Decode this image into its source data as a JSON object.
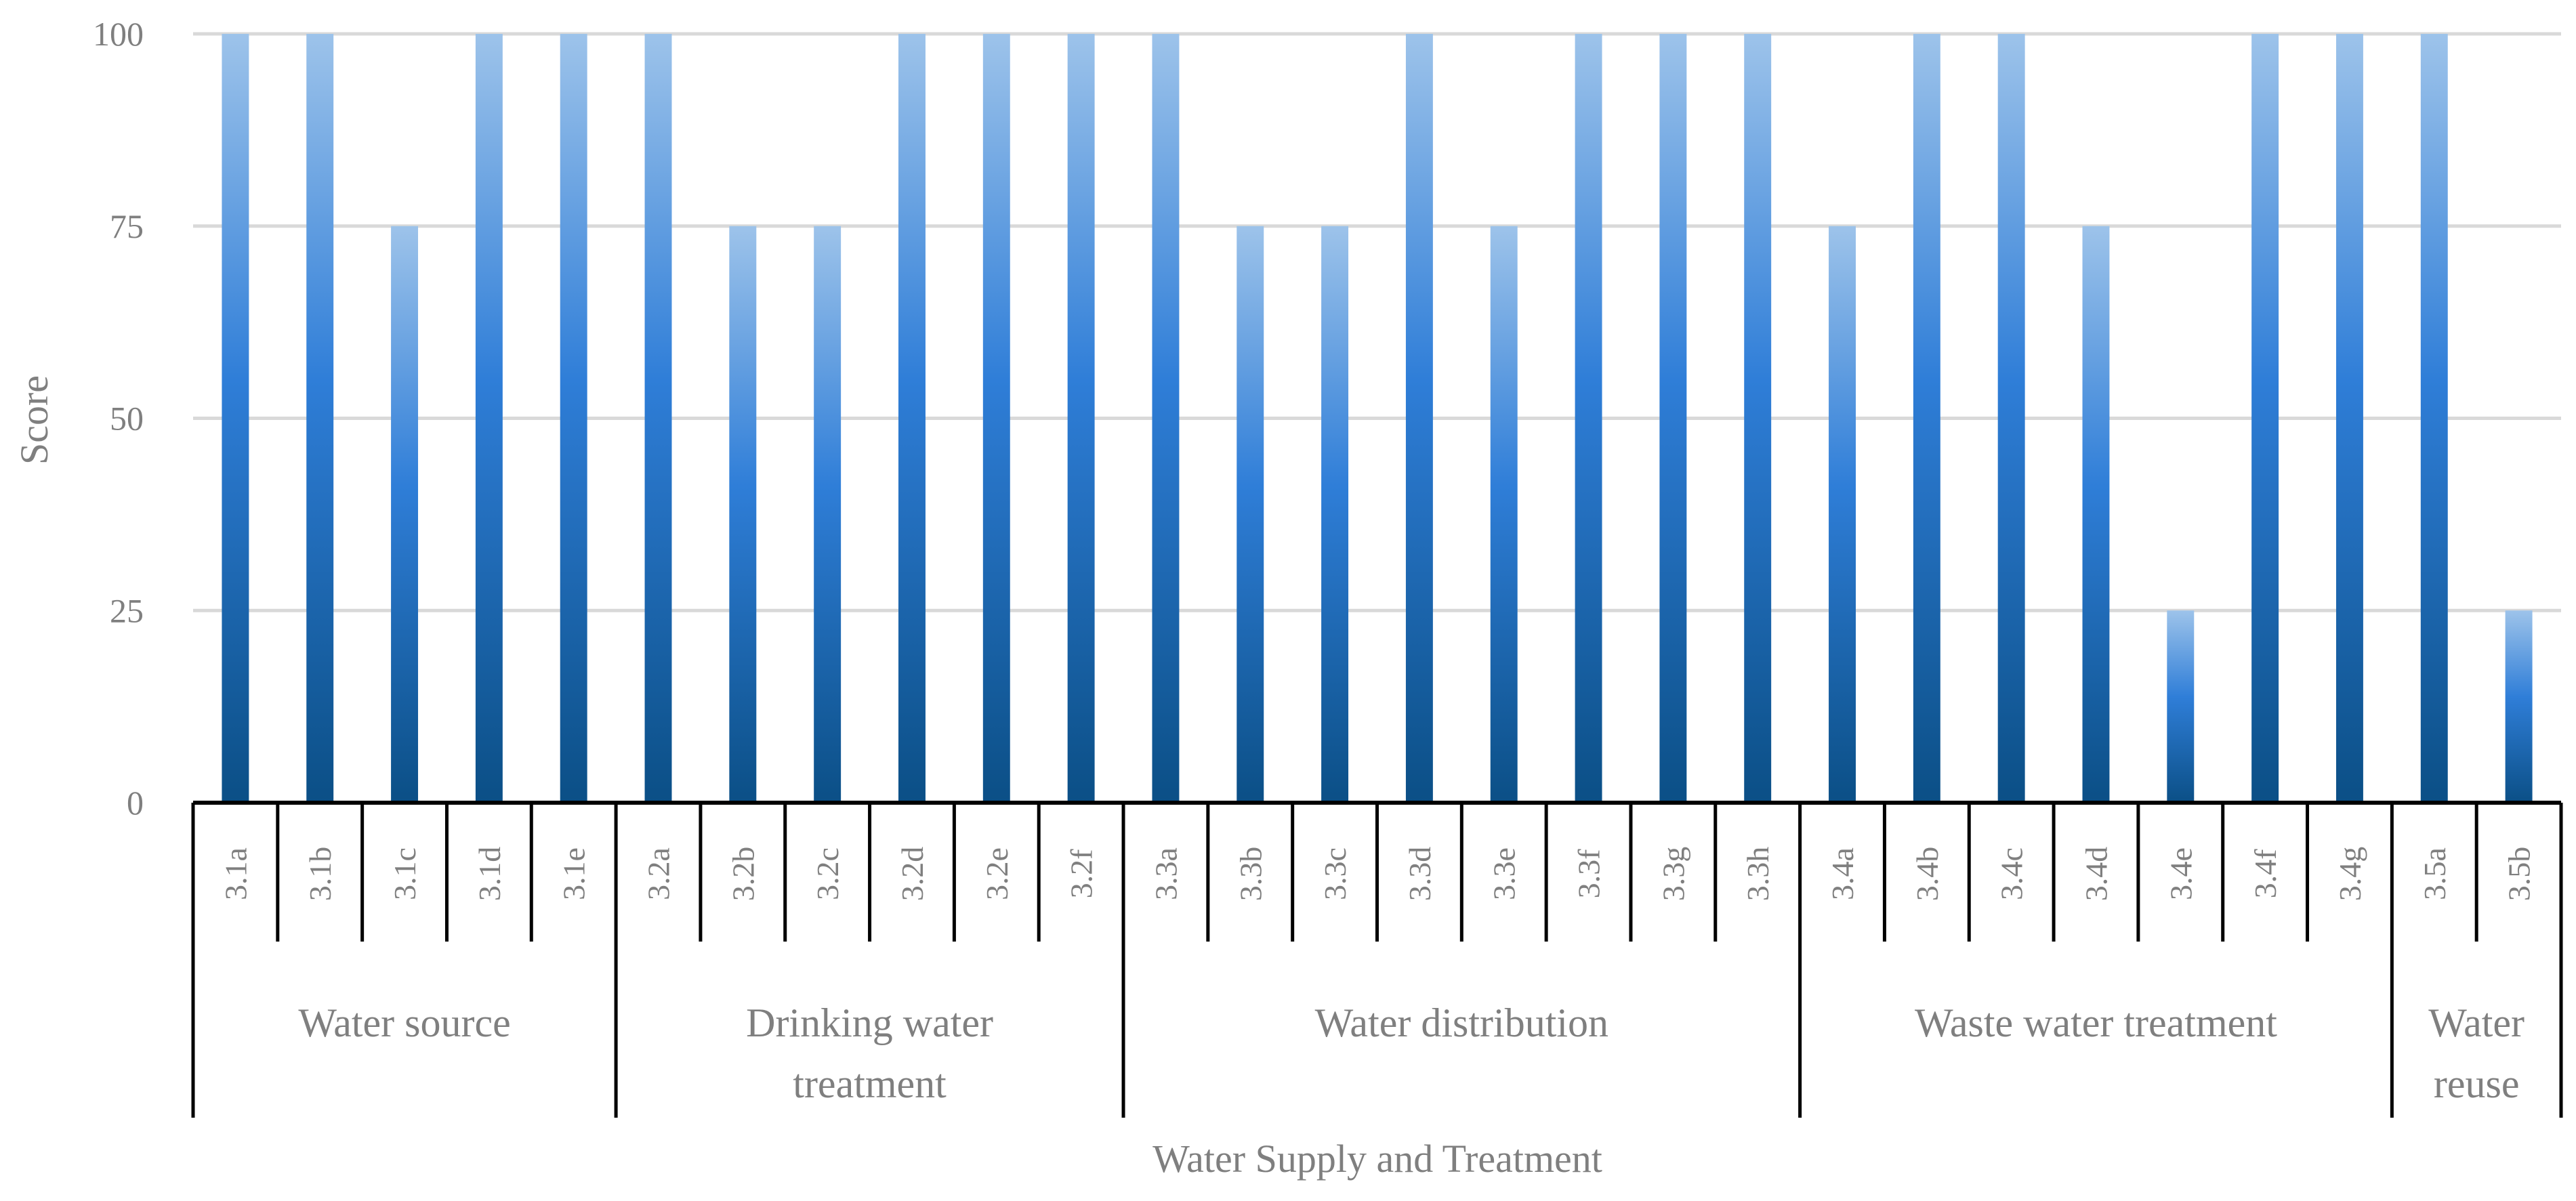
{
  "chart_data": {
    "type": "bar",
    "title": "",
    "xlabel": "Water Supply and Treatment",
    "ylabel": "Score",
    "ylim": [
      0,
      100
    ],
    "yticks": [
      0,
      25,
      50,
      75,
      100
    ],
    "grid": true,
    "legend": "none",
    "colors": {
      "bar_top": "#9dc3ea",
      "bar_mid": "#2f7ed8",
      "bar_bottom": "#0b4f86",
      "grid": "#d9d9d9",
      "text": "#7f7f7f"
    },
    "categories": [
      "3.1a",
      "3.1b",
      "3.1c",
      "3.1d",
      "3.1e",
      "3.2a",
      "3.2b",
      "3.2c",
      "3.2d",
      "3.2e",
      "3.2f",
      "3.3a",
      "3.3b",
      "3.3c",
      "3.3d",
      "3.3e",
      "3.3f",
      "3.3g",
      "3.3h",
      "3.4a",
      "3.4b",
      "3.4c",
      "3.4d",
      "3.4e",
      "3.4f",
      "3.4g",
      "3.5a",
      "3.5b"
    ],
    "values": [
      100,
      100,
      75,
      100,
      100,
      100,
      75,
      75,
      100,
      100,
      100,
      100,
      75,
      75,
      100,
      75,
      100,
      100,
      100,
      75,
      100,
      100,
      75,
      25,
      100,
      100,
      100,
      25
    ],
    "groups": [
      {
        "lines": [
          "Water source"
        ],
        "count": 5
      },
      {
        "lines": [
          "Drinking water",
          "treatment"
        ],
        "count": 6
      },
      {
        "lines": [
          "Water distribution"
        ],
        "count": 8
      },
      {
        "lines": [
          "Waste water treatment"
        ],
        "count": 7
      },
      {
        "lines": [
          "Water",
          "reuse"
        ],
        "count": 2
      }
    ]
  }
}
